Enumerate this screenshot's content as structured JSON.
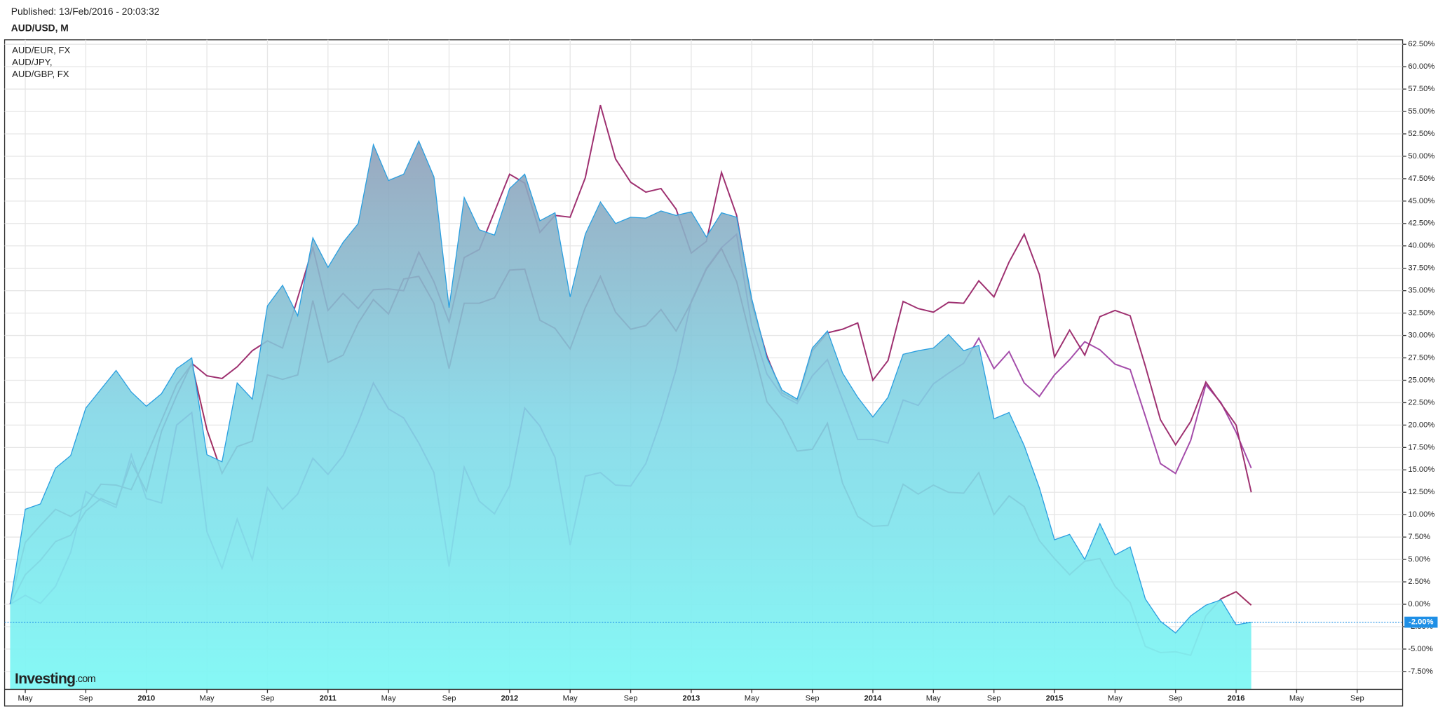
{
  "published": "Published: 13/Feb/2016 - 20:03:32",
  "logo": {
    "brand": "Investing",
    "suffix": ".com"
  },
  "chart_data": {
    "type": "line",
    "x": [
      "2009-04",
      "2009-05",
      "2009-06",
      "2009-07",
      "2009-08",
      "2009-09",
      "2009-10",
      "2009-11",
      "2009-12",
      "2010-01",
      "2010-02",
      "2010-03",
      "2010-04",
      "2010-05",
      "2010-06",
      "2010-07",
      "2010-08",
      "2010-09",
      "2010-10",
      "2010-11",
      "2010-12",
      "2011-01",
      "2011-02",
      "2011-03",
      "2011-04",
      "2011-05",
      "2011-06",
      "2011-07",
      "2011-08",
      "2011-09",
      "2011-10",
      "2011-11",
      "2011-12",
      "2012-01",
      "2012-02",
      "2012-03",
      "2012-04",
      "2012-05",
      "2012-06",
      "2012-07",
      "2012-08",
      "2012-09",
      "2012-10",
      "2012-11",
      "2012-12",
      "2013-01",
      "2013-02",
      "2013-03",
      "2013-04",
      "2013-05",
      "2013-06",
      "2013-07",
      "2013-08",
      "2013-09",
      "2013-10",
      "2013-11",
      "2013-12",
      "2014-01",
      "2014-02",
      "2014-03",
      "2014-04",
      "2014-05",
      "2014-06",
      "2014-07",
      "2014-08",
      "2014-09",
      "2014-10",
      "2014-11",
      "2014-12",
      "2015-01",
      "2015-02",
      "2015-03",
      "2015-04",
      "2015-05",
      "2015-06",
      "2015-07",
      "2015-08",
      "2015-09",
      "2015-10",
      "2015-11",
      "2015-12",
      "2016-01",
      "2016-02"
    ],
    "series": [
      {
        "name": "AUD/USD, M",
        "color": "#2a9fe0",
        "fill": true,
        "values": [
          0,
          10.6,
          11.2,
          15.2,
          16.6,
          21.9,
          24,
          26.1,
          23.7,
          22.1,
          23.5,
          26.3,
          27.5,
          16.7,
          15.9,
          24.7,
          22.9,
          33.3,
          35.6,
          32.2,
          40.9,
          37.6,
          40.4,
          42.5,
          51.3,
          47.3,
          48,
          51.7,
          47.7,
          33.1,
          45.4,
          41.8,
          41.2,
          46.4,
          48,
          42.8,
          43.7,
          34.3,
          41.3,
          44.9,
          42.5,
          43.2,
          43.1,
          43.9,
          43.4,
          43.8,
          41,
          43.7,
          43.2,
          34.1,
          27.5,
          23.9,
          22.9,
          28.6,
          30.5,
          25.8,
          23.1,
          20.9,
          23.1,
          27.9,
          28.3,
          28.6,
          30.1,
          28.3,
          28.9,
          20.7,
          21.4,
          17.7,
          13,
          7.2,
          7.8,
          5,
          9,
          5.5,
          6.4,
          0.6,
          -1.9,
          -3.2,
          -1.3,
          -0.1,
          0.5,
          -2.3,
          -2.0
        ]
      },
      {
        "name": "AUD/EUR, FX",
        "color": "#a44caa",
        "values": [
          0,
          1,
          0.1,
          2,
          5.8,
          12.6,
          11.6,
          10.8,
          16.7,
          11.8,
          11.3,
          20,
          21.4,
          8.1,
          4,
          9.5,
          5,
          13,
          10.6,
          12.3,
          16.3,
          14.5,
          16.6,
          20.3,
          24.7,
          21.8,
          20.8,
          18,
          14.7,
          4.2,
          15.3,
          11.5,
          10.1,
          13.2,
          21.9,
          19.9,
          16.4,
          6.6,
          14.3,
          14.7,
          13.3,
          13.2,
          15.7,
          20.5,
          26.2,
          33.8,
          37.5,
          39.8,
          41.3,
          31.1,
          25.7,
          23.3,
          22.4,
          25.5,
          27.3,
          22.8,
          18.4,
          18.4,
          18,
          22.8,
          22.2,
          24.6,
          25.8,
          26.9,
          29.7,
          26.3,
          28.2,
          24.7,
          23.2,
          25.6,
          27.3,
          29.3,
          28.4,
          26.8,
          26.2,
          21,
          15.7,
          14.6,
          18.3,
          24.5,
          22.5,
          19.2,
          15.2
        ]
      },
      {
        "name": "AUD/JPY,",
        "color": "#9e3070",
        "values": [
          0,
          3.3,
          4.9,
          7,
          7.7,
          10.4,
          11.8,
          11.1,
          15.9,
          12.6,
          19.3,
          23.3,
          26.9,
          25.5,
          25.2,
          26.5,
          28.3,
          29.4,
          28.6,
          34.2,
          39.8,
          32.8,
          34.7,
          33,
          35.1,
          35.2,
          35,
          39.3,
          36,
          31.5,
          38.7,
          39.6,
          43.8,
          48,
          47,
          41.5,
          43.4,
          43.2,
          47.6,
          55.7,
          49.7,
          47.1,
          46,
          46.4,
          44.1,
          39.2,
          40.5,
          48.2,
          43.4,
          33.6,
          27.7,
          23.6,
          22.7,
          28.3,
          30.3,
          30.7,
          31.4,
          25,
          27.2,
          33.8,
          33,
          32.6,
          33.7,
          33.6,
          36.1,
          34.3,
          38.2,
          41.3,
          36.8,
          27.6,
          30.6,
          27.8,
          32.1,
          32.8,
          32.2,
          26.6,
          20.6,
          17.8,
          20.4,
          24.8,
          22.4,
          20,
          12.5
        ]
      },
      {
        "name": "AUD/GBP, FX",
        "color": "#a02e62",
        "values": [
          0,
          6.9,
          8.8,
          10.6,
          9.8,
          11,
          13.4,
          13.3,
          12.8,
          16.5,
          20.5,
          24.5,
          26.8,
          19.5,
          14.6,
          17.6,
          18.2,
          25.6,
          25.1,
          25.6,
          33.9,
          27,
          27.8,
          31.4,
          34,
          32.4,
          36.3,
          36.6,
          33.6,
          26.3,
          33.6,
          33.6,
          34.2,
          37.3,
          37.4,
          31.7,
          30.8,
          28.5,
          33.1,
          36.6,
          32.6,
          30.7,
          31.1,
          32.9,
          30.5,
          33.7,
          37.4,
          39.7,
          36,
          29.2,
          22.6,
          20.5,
          17.1,
          17.3,
          20.2,
          13.5,
          9.8,
          8.7,
          8.8,
          13.4,
          12.3,
          13.3,
          12.5,
          12.4,
          14.7,
          10,
          12.1,
          10.9,
          7.1,
          5.1,
          3.3,
          4.8,
          5.1,
          2,
          0.2,
          -4.7,
          -5.4,
          -5.3,
          -5.7,
          -1.3,
          0.6,
          1.4,
          -0.1
        ]
      }
    ],
    "xlim": [
      "2009-04",
      "2016-12"
    ],
    "xticks": [
      {
        "value": "2009-05",
        "label": "May"
      },
      {
        "value": "2009-09",
        "label": "Sep"
      },
      {
        "value": "2010-01",
        "label": "2010"
      },
      {
        "value": "2010-05",
        "label": "May"
      },
      {
        "value": "2010-09",
        "label": "Sep"
      },
      {
        "value": "2011-01",
        "label": "2011"
      },
      {
        "value": "2011-05",
        "label": "May"
      },
      {
        "value": "2011-09",
        "label": "Sep"
      },
      {
        "value": "2012-01",
        "label": "2012"
      },
      {
        "value": "2012-05",
        "label": "May"
      },
      {
        "value": "2012-09",
        "label": "Sep"
      },
      {
        "value": "2013-01",
        "label": "2013"
      },
      {
        "value": "2013-05",
        "label": "May"
      },
      {
        "value": "2013-09",
        "label": "Sep"
      },
      {
        "value": "2014-01",
        "label": "2014"
      },
      {
        "value": "2014-05",
        "label": "May"
      },
      {
        "value": "2014-09",
        "label": "Sep"
      },
      {
        "value": "2015-01",
        "label": "2015"
      },
      {
        "value": "2015-05",
        "label": "May"
      },
      {
        "value": "2015-09",
        "label": "Sep"
      },
      {
        "value": "2016-01",
        "label": "2016"
      },
      {
        "value": "2016-05",
        "label": "May"
      },
      {
        "value": "2016-09",
        "label": "Sep"
      }
    ],
    "ylim": [
      -9.5,
      63
    ],
    "yticks": [
      {
        "value": -7.5,
        "label": "-7.50%"
      },
      {
        "value": -5,
        "label": "-5.00%"
      },
      {
        "value": -2.5,
        "label": "-2.50%"
      },
      {
        "value": 0,
        "label": "0.00%"
      },
      {
        "value": 2.5,
        "label": "2.50%"
      },
      {
        "value": 5,
        "label": "5.00%"
      },
      {
        "value": 7.5,
        "label": "7.50%"
      },
      {
        "value": 10,
        "label": "10.00%"
      },
      {
        "value": 12.5,
        "label": "12.50%"
      },
      {
        "value": 15,
        "label": "15.00%"
      },
      {
        "value": 17.5,
        "label": "17.50%"
      },
      {
        "value": 20,
        "label": "20.00%"
      },
      {
        "value": 22.5,
        "label": "22.50%"
      },
      {
        "value": 25,
        "label": "25.00%"
      },
      {
        "value": 27.5,
        "label": "27.50%"
      },
      {
        "value": 30,
        "label": "30.00%"
      },
      {
        "value": 32.5,
        "label": "32.50%"
      },
      {
        "value": 35,
        "label": "35.00%"
      },
      {
        "value": 37.5,
        "label": "37.50%"
      },
      {
        "value": 40,
        "label": "40.00%"
      },
      {
        "value": 42.5,
        "label": "42.50%"
      },
      {
        "value": 45,
        "label": "45.00%"
      },
      {
        "value": 47.5,
        "label": "47.50%"
      },
      {
        "value": 50,
        "label": "50.00%"
      },
      {
        "value": 52.5,
        "label": "52.50%"
      },
      {
        "value": 55,
        "label": "55.00%"
      },
      {
        "value": 57.5,
        "label": "57.50%"
      },
      {
        "value": 60,
        "label": "60.00%"
      },
      {
        "value": 62.5,
        "label": "62.50%"
      }
    ],
    "grid": true,
    "current": {
      "value": -2,
      "label": "-2.00%",
      "color": "#1e8fe6"
    }
  }
}
